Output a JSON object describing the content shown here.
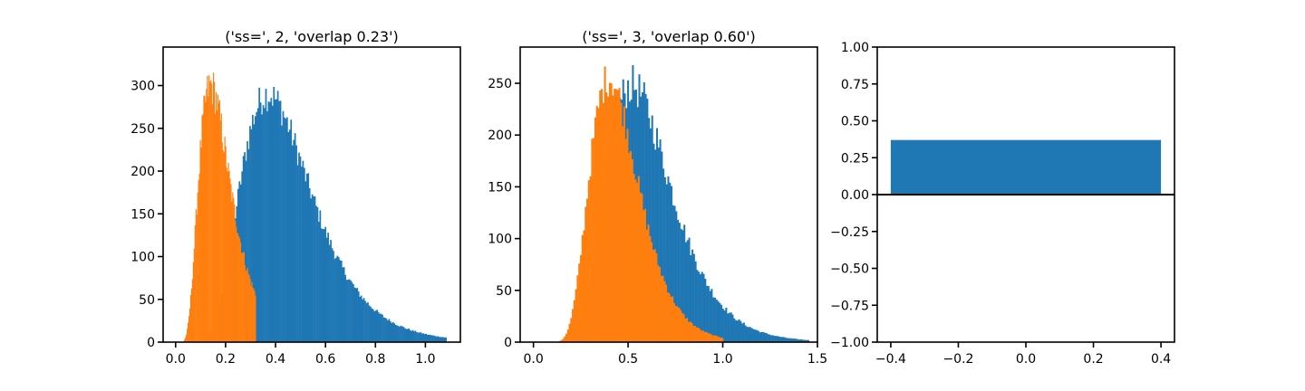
{
  "chart_data": [
    {
      "type": "histogram",
      "title": "('ss=', 2, 'overlap 0.23')",
      "xlim": [
        -0.05,
        1.14
      ],
      "ylim": [
        0,
        345
      ],
      "xticks": [
        0.0,
        0.2,
        0.4,
        0.6,
        0.8,
        1.0
      ],
      "xtick_labels": [
        "0.0",
        "0.2",
        "0.4",
        "0.6",
        "0.8",
        "1.0"
      ],
      "yticks": [
        0,
        50,
        100,
        150,
        200,
        250,
        300
      ],
      "ytick_labels": [
        "0",
        "50",
        "100",
        "150",
        "200",
        "250",
        "300"
      ],
      "series": [
        {
          "color": "#1f77b4",
          "shape": "lognormal",
          "x_start": 0.03,
          "x_end": 1.08,
          "bin_width": 0.0053,
          "peak_x": 0.37,
          "peak_y": 290,
          "sigma": 0.38,
          "noise": 0.07
        },
        {
          "color": "#ff7f0e",
          "shape": "lognormal",
          "x_start": 0.02,
          "x_end": 0.32,
          "bin_width": 0.0035,
          "peak_x": 0.14,
          "peak_y": 300,
          "sigma": 0.45,
          "noise": 0.08,
          "max_y": 326
        }
      ]
    },
    {
      "type": "histogram",
      "title": "('ss=', 3, 'overlap 0.60')",
      "xlim": [
        -0.07,
        1.5
      ],
      "ylim": [
        0,
        285
      ],
      "xticks": [
        0.0,
        0.5,
        1.0,
        1.5
      ],
      "xtick_labels": [
        "0.0",
        "0.5",
        "1.0",
        "1.5"
      ],
      "yticks": [
        0,
        50,
        100,
        150,
        200,
        250
      ],
      "ytick_labels": [
        "0",
        "50",
        "100",
        "150",
        "200",
        "250"
      ],
      "series": [
        {
          "color": "#1f77b4",
          "shape": "lognormal",
          "x_start": 0.07,
          "x_end": 1.45,
          "bin_width": 0.0085,
          "peak_x": 0.52,
          "peak_y": 248,
          "sigma": 0.33,
          "noise": 0.08
        },
        {
          "color": "#ff7f0e",
          "shape": "lognormal",
          "x_start": 0.05,
          "x_end": 1.0,
          "bin_width": 0.0085,
          "peak_x": 0.4,
          "peak_y": 255,
          "sigma": 0.32,
          "noise": 0.07,
          "max_y": 274
        }
      ]
    },
    {
      "type": "bar",
      "title": "",
      "xlim": [
        -0.44,
        0.44
      ],
      "ylim": [
        -1.0,
        1.0
      ],
      "xticks": [
        -0.4,
        -0.2,
        0.0,
        0.2,
        0.4
      ],
      "xtick_labels": [
        "−0.4",
        "−0.2",
        "0.0",
        "0.2",
        "0.4"
      ],
      "yticks": [
        -1.0,
        -0.75,
        -0.5,
        -0.25,
        0.0,
        0.25,
        0.5,
        0.75,
        1.0
      ],
      "ytick_labels": [
        "−1.00",
        "−0.75",
        "−0.50",
        "−0.25",
        "0.00",
        "0.25",
        "0.50",
        "0.75",
        "1.00"
      ],
      "bars": [
        {
          "x": 0.0,
          "width": 0.8,
          "value": 0.37,
          "color": "#1f77b4"
        }
      ],
      "hline": {
        "y": 0.0,
        "color": "#000000"
      }
    }
  ]
}
